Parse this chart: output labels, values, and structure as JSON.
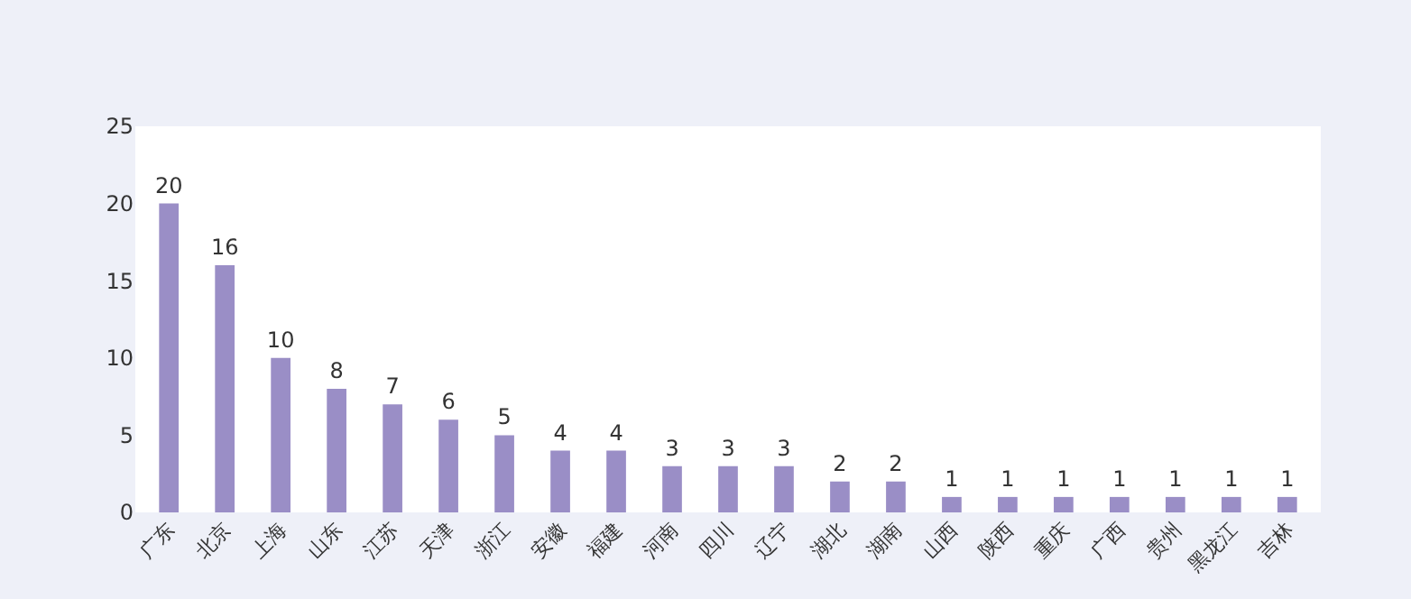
{
  "chart_data": {
    "type": "bar",
    "categories": [
      "广东",
      "北京",
      "上海",
      "山东",
      "江苏",
      "天津",
      "浙江",
      "安徽",
      "福建",
      "河南",
      "四川",
      "辽宁",
      "湖北",
      "湖南",
      "山西",
      "陕西",
      "重庆",
      "广西",
      "贵州",
      "黑龙江",
      "吉林"
    ],
    "values": [
      20,
      16,
      10,
      8,
      7,
      6,
      5,
      4,
      4,
      3,
      3,
      3,
      2,
      2,
      1,
      1,
      1,
      1,
      1,
      1,
      1
    ],
    "color": "#9a8ec6",
    "ylim": [
      0,
      25
    ],
    "yticks": [
      0,
      5,
      10,
      15,
      20,
      25
    ],
    "data_labels": true
  }
}
